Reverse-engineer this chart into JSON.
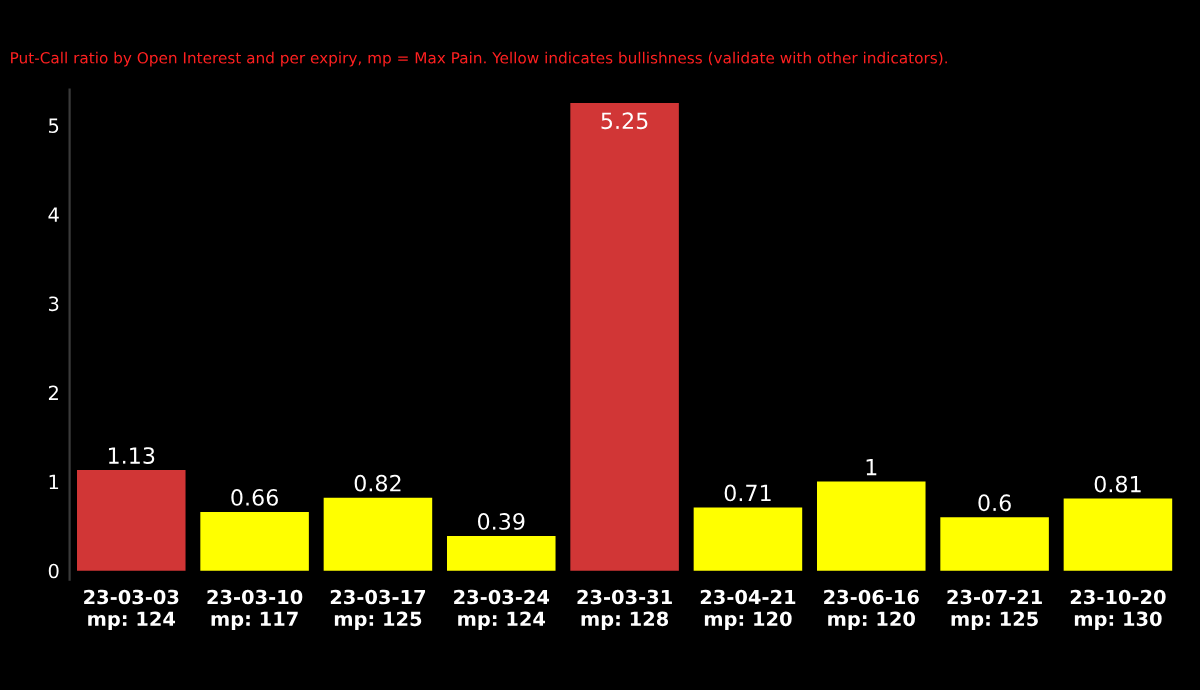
{
  "chart_data": {
    "type": "bar",
    "subtitle": "Put-Call ratio by Open Interest and per expiry, mp = Max Pain. Yellow indicates bullishness (validate with other indicators).",
    "categories": [
      "23-03-03\nmp: 124",
      "23-03-10\nmp: 117",
      "23-03-17\nmp: 125",
      "23-03-24\nmp: 124",
      "23-03-31\nmp: 128",
      "23-04-21\nmp: 120",
      "23-06-16\nmp: 120",
      "23-07-21\nmp: 125",
      "23-10-20\nmp: 130"
    ],
    "values": [
      1.13,
      0.66,
      0.82,
      0.39,
      5.25,
      0.71,
      1,
      0.6,
      0.81
    ],
    "colors": [
      "#d13636",
      "#ffff00",
      "#ffff00",
      "#ffff00",
      "#d13636",
      "#ffff00",
      "#ffff00",
      "#ffff00",
      "#ffff00"
    ],
    "ylim": [
      -0.1,
      5.4
    ],
    "yticks": [
      0,
      1,
      2,
      3,
      4,
      5
    ],
    "data_labels": true,
    "grid": false,
    "legend": false
  }
}
